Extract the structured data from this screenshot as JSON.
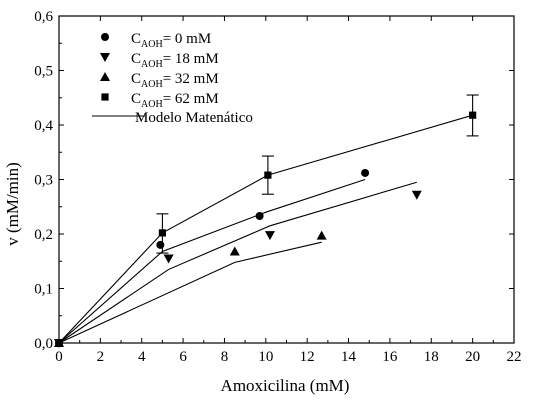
{
  "chart_data": {
    "type": "scatter",
    "title": "",
    "xlabel": "Amoxicilina (mM)",
    "ylabel": "v (mM/min)",
    "xlim": [
      0,
      22
    ],
    "ylim": [
      0,
      0.6
    ],
    "x_ticks": [
      0,
      2,
      4,
      6,
      8,
      10,
      12,
      14,
      16,
      18,
      20,
      22
    ],
    "y_ticks": [
      0.0,
      0.1,
      0.2,
      0.3,
      0.4,
      0.5,
      0.6
    ],
    "x_tick_labels": [
      "0",
      "2",
      "4",
      "6",
      "8",
      "10",
      "12",
      "14",
      "16",
      "18",
      "20",
      "22"
    ],
    "y_tick_labels": [
      "0,0",
      "0,1",
      "0,2",
      "0,3",
      "0,4",
      "0,5",
      "0,6"
    ],
    "grid": false,
    "legend_position": "top-left",
    "series": [
      {
        "name": "C_AOH = 0 mM",
        "legend_main": "C",
        "legend_sub": "AOH",
        "legend_rest": "= 0 mM",
        "marker": "circle",
        "points": [
          {
            "x": 0,
            "y": 0
          },
          {
            "x": 4.9,
            "y": 0.18
          },
          {
            "x": 9.7,
            "y": 0.233
          },
          {
            "x": 14.8,
            "y": 0.312
          }
        ]
      },
      {
        "name": "C_AOH = 18 mM",
        "legend_main": "C",
        "legend_sub": "AOH",
        "legend_rest": "= 18 mM",
        "marker": "triangle-down",
        "points": [
          {
            "x": 0,
            "y": 0
          },
          {
            "x": 5.3,
            "y": 0.155
          },
          {
            "x": 10.2,
            "y": 0.198
          },
          {
            "x": 17.3,
            "y": 0.272
          }
        ]
      },
      {
        "name": "C_AOH = 32 mM",
        "legend_main": "C",
        "legend_sub": "AOH",
        "legend_rest": "= 32 mM",
        "marker": "triangle-up",
        "points": [
          {
            "x": 0,
            "y": 0
          },
          {
            "x": 8.5,
            "y": 0.168
          },
          {
            "x": 12.7,
            "y": 0.197
          }
        ]
      },
      {
        "name": "C_AOH = 62 mM",
        "legend_main": "C",
        "legend_sub": "AOH",
        "legend_rest": "= 62 mM",
        "marker": "square",
        "points": [
          {
            "x": 0,
            "y": 0
          },
          {
            "x": 5.0,
            "y": 0.202
          },
          {
            "x": 10.1,
            "y": 0.308
          },
          {
            "x": 20.0,
            "y": 0.418
          }
        ],
        "error_bars": [
          {
            "x": 5.0,
            "low": 0.165,
            "high": 0.237
          },
          {
            "x": 10.1,
            "low": 0.273,
            "high": 0.343
          },
          {
            "x": 20.0,
            "low": 0.38,
            "high": 0.455
          }
        ]
      }
    ],
    "model": {
      "name": "Modelo Matenático",
      "curves": [
        [
          {
            "x": 0,
            "y": 0
          },
          {
            "x": 5.0,
            "y": 0.168
          },
          {
            "x": 10.0,
            "y": 0.24
          },
          {
            "x": 14.8,
            "y": 0.3
          }
        ],
        [
          {
            "x": 0,
            "y": 0
          },
          {
            "x": 5.3,
            "y": 0.135
          },
          {
            "x": 10.2,
            "y": 0.215
          },
          {
            "x": 17.3,
            "y": 0.295
          }
        ],
        [
          {
            "x": 0,
            "y": 0
          },
          {
            "x": 8.5,
            "y": 0.148
          },
          {
            "x": 12.7,
            "y": 0.185
          }
        ],
        [
          {
            "x": 0,
            "y": 0
          },
          {
            "x": 5.0,
            "y": 0.202
          },
          {
            "x": 10.1,
            "y": 0.308
          },
          {
            "x": 20.0,
            "y": 0.418
          }
        ]
      ]
    }
  }
}
